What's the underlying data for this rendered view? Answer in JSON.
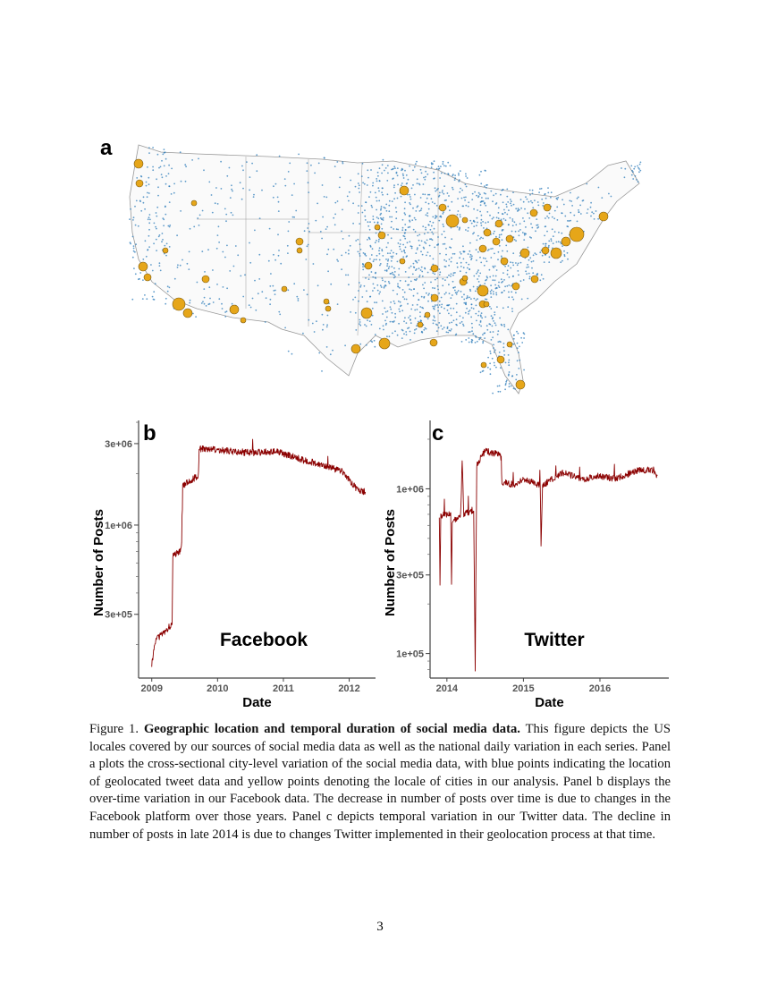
{
  "figure": {
    "panel_a_label": "a",
    "map_colors": {
      "tweets": "#2b7bba",
      "cities": "#e6a619",
      "borders": "#999999"
    },
    "legend_note": "blue points = geolocated tweets, yellow points = cities"
  },
  "chart_data": [
    {
      "type": "line",
      "panel_label": "b",
      "annotation": "Facebook",
      "xlabel": "Date",
      "ylabel": "Number of Posts",
      "yscale": "log",
      "x_ticks": [
        "2009",
        "2010",
        "2011",
        "2012"
      ],
      "y_ticks": [
        "3e+05",
        "1e+06",
        "3e+06"
      ],
      "xlim": [
        2008.8,
        2012.4
      ],
      "ylim": [
        127000,
        4100000
      ],
      "color": "#8b0000",
      "series": [
        {
          "x": [
            2009.0,
            2009.05,
            2009.3,
            2009.31,
            2009.32,
            2009.45,
            2009.46,
            2009.47,
            2009.7,
            2009.71,
            2009.72,
            2010.0,
            2010.5,
            2010.9,
            2011.3,
            2011.6,
            2011.9,
            2012.1,
            2012.25
          ],
          "y": [
            150000,
            210000,
            260000,
            260000,
            650000,
            720000,
            950000,
            1700000,
            1950000,
            2000000,
            2800000,
            2750000,
            2650000,
            2700000,
            2400000,
            2250000,
            2050000,
            1650000,
            1550000
          ]
        }
      ]
    },
    {
      "type": "line",
      "panel_label": "c",
      "annotation": "Twitter",
      "xlabel": "Date",
      "ylabel": "Number of Posts",
      "yscale": "log",
      "x_ticks": [
        "2014",
        "2015",
        "2016"
      ],
      "y_ticks": [
        "1e+05",
        "3e+05",
        "1e+06"
      ],
      "xlim": [
        2013.78,
        2016.9
      ],
      "ylim": [
        71000,
        2600000
      ],
      "color": "#8b0000",
      "series": [
        {
          "x": [
            2013.9,
            2013.91,
            2013.92,
            2013.95,
            2014.05,
            2014.06,
            2014.07,
            2014.1,
            2014.18,
            2014.2,
            2014.22,
            2014.35,
            2014.37,
            2014.39,
            2014.5,
            2014.7,
            2014.72,
            2014.9,
            2015.0,
            2015.22,
            2015.23,
            2015.25,
            2015.5,
            2015.8,
            2016.0,
            2016.2,
            2016.5,
            2016.7,
            2016.75
          ],
          "y": [
            700000,
            270000,
            680000,
            690000,
            720000,
            260000,
            650000,
            640000,
            700000,
            1500000,
            700000,
            750000,
            80000,
            1400000,
            1700000,
            1600000,
            1100000,
            1050000,
            1150000,
            1050000,
            450000,
            1050000,
            1250000,
            1150000,
            1200000,
            1150000,
            1300000,
            1300000,
            1200000
          ]
        }
      ]
    }
  ],
  "caption": {
    "prefix": "Figure 1.",
    "title": "Geographic location and temporal duration of social media data.",
    "body": "This figure depicts the US locales covered by our sources of social media data as well as the national daily variation in each series. Panel a plots the cross-sectional city-level variation of the social media data, with blue points indicating the location of geolocated tweet data and yellow points denoting the locale of cities in our analysis. Panel b displays the over-time variation in our Facebook data. The decrease in number of posts over time is due to changes in the Facebook platform over those years. Panel c depicts temporal variation in our Twitter data. The decline in number of posts in late 2014 is due to changes Twitter implemented in their geolocation process at that time."
  },
  "page_number": "3"
}
